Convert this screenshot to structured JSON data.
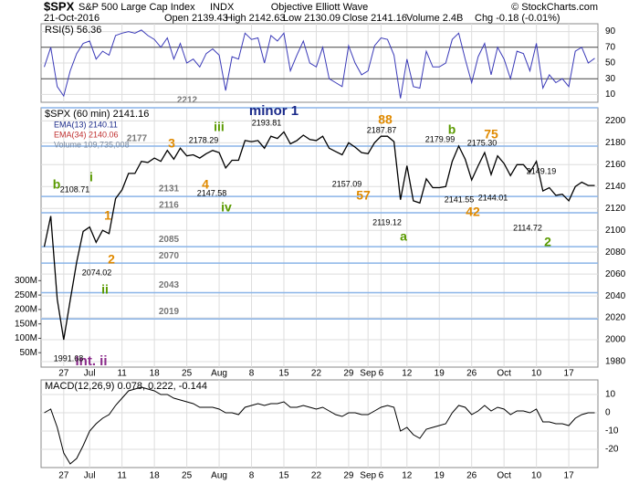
{
  "header": {
    "symbol": "$SPX",
    "name": "S&P 500 Large Cap Index",
    "exchange": "INDX",
    "center": "Objective Elliott Wave",
    "credit": "© StockCharts.com",
    "date": "21-Oct-2016",
    "stats": [
      "Open 2139.43",
      "High 2142.63",
      "Low 2130.09",
      "Close 2141.16",
      "Volume 2.4B",
      "Chg -0.18 (-0.01%)"
    ]
  },
  "chart_data": [
    {
      "type": "line",
      "title": "$SPX (60 min) 2141.16",
      "legend": [
        "EMA(13) 2140.11",
        "EMA(34) 2140.06",
        "Volume 109,735,008"
      ],
      "categories": [
        null,
        null,
        null,
        "27",
        null,
        null,
        null,
        "Jul",
        null,
        null,
        null,
        null,
        "11",
        null,
        null,
        null,
        null,
        "18",
        null,
        null,
        null,
        null,
        "25",
        null,
        null,
        null,
        null,
        "Aug",
        null,
        null,
        null,
        null,
        "8",
        null,
        null,
        null,
        null,
        "15",
        null,
        null,
        null,
        null,
        "22",
        null,
        null,
        null,
        null,
        "29",
        null,
        null,
        "Sep",
        null,
        "6",
        null,
        null,
        null,
        "12",
        null,
        null,
        null,
        null,
        "19",
        null,
        null,
        null,
        null,
        "26",
        null,
        null,
        null,
        null,
        "Oct",
        null,
        null,
        null,
        null,
        "10",
        null,
        null,
        null,
        null,
        "17",
        null,
        null,
        null,
        null
      ],
      "series": [
        {
          "color": "#000000",
          "values": [
            2085,
            2113,
            2037,
            2000,
            2036,
            2071,
            2099,
            2103,
            2089,
            2100,
            2097,
            2129,
            2137,
            2152,
            2152,
            2163,
            2162,
            2166,
            2163,
            2173,
            2165,
            2175,
            2168,
            2169,
            2166,
            2170,
            2173,
            2171,
            2157,
            2164,
            2164,
            2182,
            2181,
            2182,
            2175,
            2186,
            2184,
            2190,
            2179,
            2182,
            2187,
            2183,
            2182,
            2186,
            2175,
            2172,
            2169,
            2180,
            2176,
            2171,
            2170,
            2180,
            2186,
            2186,
            2181,
            2128,
            2159,
            2127,
            2125,
            2147,
            2139,
            2139,
            2140,
            2163,
            2177,
            2165,
            2146,
            2159,
            2171,
            2151,
            2168,
            2161,
            2150,
            2160,
            2160,
            2153,
            2163,
            2136,
            2139,
            2132,
            2133,
            2127,
            2140,
            2144,
            2141,
            2141
          ]
        }
      ],
      "ylim": [
        1975,
        2212
      ],
      "yticks": [
        1980,
        2000,
        2020,
        2040,
        2060,
        2080,
        2100,
        2120,
        2140,
        2160,
        2180,
        2200
      ],
      "volume_lim": [
        0,
        900000000
      ],
      "volume_ticks": [
        {
          "value": 50000000,
          "label": "50M"
        },
        {
          "value": 100000000,
          "label": "100M"
        },
        {
          "value": 150000000,
          "label": "150M"
        },
        {
          "value": 200000000,
          "label": "200M"
        },
        {
          "value": 250000000,
          "label": "250M"
        },
        {
          "value": 300000000,
          "label": "300M"
        }
      ],
      "levels": [
        2212,
        2177,
        2131,
        2116,
        2085,
        2070,
        2043,
        2019
      ],
      "annotations": [
        {
          "text": "b",
          "color": "#5a9a00"
        },
        {
          "text": "i",
          "color": "#5a9a00"
        },
        {
          "text": "1",
          "color": "#e08a00"
        },
        {
          "text": "2",
          "color": "#e08a00"
        },
        {
          "text": "ii",
          "color": "#5a9a00"
        },
        {
          "text": "3",
          "color": "#e08a00"
        },
        {
          "text": "iii",
          "color": "#5a9a00"
        },
        {
          "text": "4",
          "color": "#e08a00"
        },
        {
          "text": "iv",
          "color": "#5a9a00"
        },
        {
          "text": "minor 1",
          "color": "#1a2a8a"
        },
        {
          "text": "88",
          "color": "#e08a00"
        },
        {
          "text": "57",
          "color": "#e08a00"
        },
        {
          "text": "b",
          "color": "#5a9a00"
        },
        {
          "text": "75",
          "color": "#e08a00"
        },
        {
          "text": "42",
          "color": "#e08a00"
        },
        {
          "text": "a",
          "color": "#5a9a00"
        },
        {
          "text": "2",
          "color": "#5a9a00"
        },
        {
          "text": "Int. ii",
          "color": "#8a2a8a"
        },
        {
          "text": "2108.71",
          "color": "#000000"
        },
        {
          "text": "2074.02",
          "color": "#000000"
        },
        {
          "text": "1991.68",
          "color": "#000000"
        },
        {
          "text": "2178.29",
          "color": "#000000"
        },
        {
          "text": "2147.58",
          "color": "#000000"
        },
        {
          "text": "2193.81",
          "color": "#000000"
        },
        {
          "text": "2187.87",
          "color": "#000000"
        },
        {
          "text": "2157.09",
          "color": "#000000"
        },
        {
          "text": "2119.12",
          "color": "#000000"
        },
        {
          "text": "2179.99",
          "color": "#000000"
        },
        {
          "text": "2175.30",
          "color": "#000000"
        },
        {
          "text": "2141.55",
          "color": "#000000"
        },
        {
          "text": "2144.01",
          "color": "#000000"
        },
        {
          "text": "2149.19",
          "color": "#000000"
        },
        {
          "text": "2114.72",
          "color": "#000000"
        }
      ]
    },
    {
      "type": "line",
      "title": "RSI(5) 56.36",
      "series": [
        {
          "color": "#3a3ab8",
          "values": [
            45,
            70,
            20,
            8,
            40,
            62,
            75,
            78,
            55,
            65,
            60,
            85,
            88,
            90,
            88,
            92,
            85,
            80,
            70,
            82,
            55,
            75,
            50,
            55,
            45,
            62,
            68,
            60,
            15,
            58,
            55,
            88,
            80,
            82,
            50,
            85,
            78,
            88,
            40,
            60,
            78,
            50,
            45,
            70,
            30,
            25,
            20,
            72,
            50,
            35,
            40,
            72,
            82,
            80,
            60,
            5,
            55,
            20,
            18,
            65,
            45,
            45,
            50,
            80,
            88,
            55,
            25,
            58,
            75,
            35,
            70,
            55,
            30,
            65,
            62,
            40,
            75,
            18,
            35,
            25,
            30,
            20,
            65,
            70,
            50,
            56
          ]
        }
      ],
      "ylim": [
        0,
        100
      ],
      "yticks": [
        10,
        30,
        50,
        70,
        90
      ]
    },
    {
      "type": "line",
      "title": "MACD(12,26,9) 0.078, 0.222, -0.144",
      "series": [
        {
          "color": "#000000",
          "values": [
            0,
            2,
            -8,
            -22,
            -28,
            -25,
            -18,
            -10,
            -6,
            -3,
            -1,
            4,
            8,
            12,
            13,
            14,
            13,
            12,
            10,
            10,
            8,
            7,
            6,
            5,
            3,
            3,
            3,
            2,
            0,
            0,
            -1,
            3,
            4,
            5,
            4,
            5,
            5,
            6,
            3,
            3,
            4,
            3,
            2,
            3,
            1,
            -1,
            -2,
            0,
            0,
            -1,
            -1,
            1,
            3,
            4,
            3,
            -10,
            -8,
            -12,
            -14,
            -9,
            -8,
            -7,
            -6,
            0,
            4,
            3,
            -1,
            1,
            4,
            1,
            3,
            2,
            -1,
            1,
            1,
            0,
            2,
            -5,
            -5,
            -6,
            -6,
            -7,
            -3,
            -1,
            0,
            0
          ]
        }
      ],
      "ylim": [
        -30,
        18
      ],
      "yticks": [
        -20,
        -10,
        0,
        10
      ]
    }
  ]
}
